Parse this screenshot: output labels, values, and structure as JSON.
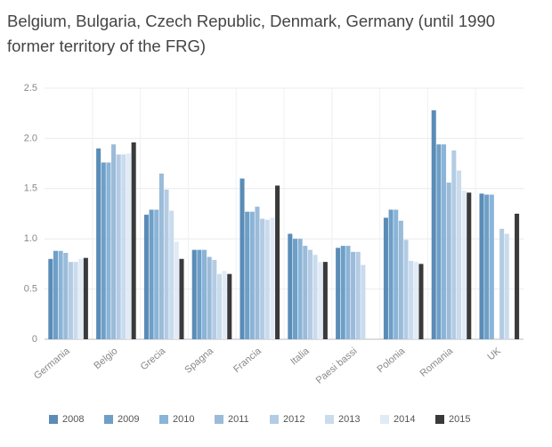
{
  "chart_data": {
    "type": "bar",
    "title": "Belgium, Bulgaria, Czech Republic, Denmark, Germany (until 1990 former territory of the FRG)",
    "categories": [
      "Germania",
      "Belgio",
      "Grecia",
      "Spagna",
      "Francia",
      "Italia",
      "Paesi bassi",
      "Polonia",
      "Romania",
      "UK"
    ],
    "series": [
      {
        "name": "2008",
        "color": "#5a8cb7",
        "values": [
          0.8,
          1.9,
          1.24,
          0.89,
          1.6,
          1.05,
          0.91,
          1.21,
          2.28,
          1.45
        ]
      },
      {
        "name": "2009",
        "color": "#6e9fc7",
        "values": [
          0.88,
          1.76,
          1.29,
          0.89,
          1.27,
          1.0,
          0.93,
          1.29,
          1.94,
          1.44
        ]
      },
      {
        "name": "2010",
        "color": "#8ab4d8",
        "values": [
          0.88,
          1.76,
          1.29,
          0.89,
          1.27,
          1.0,
          0.93,
          1.29,
          1.94,
          1.44
        ]
      },
      {
        "name": "2011",
        "color": "#9bbbd8",
        "values": [
          0.86,
          1.94,
          1.65,
          0.82,
          1.32,
          0.93,
          0.87,
          1.18,
          1.56,
          null
        ]
      },
      {
        "name": "2012",
        "color": "#b3cce4",
        "values": [
          0.77,
          1.84,
          1.49,
          0.79,
          1.2,
          0.89,
          0.87,
          0.99,
          1.88,
          1.1
        ]
      },
      {
        "name": "2013",
        "color": "#c9dbed",
        "values": [
          0.77,
          1.84,
          1.28,
          0.65,
          1.19,
          0.84,
          0.74,
          0.78,
          1.68,
          1.05
        ]
      },
      {
        "name": "2014",
        "color": "#e1ebf6",
        "values": [
          0.8,
          1.85,
          0.97,
          0.68,
          1.21,
          0.77,
          null,
          0.77,
          1.48,
          null
        ]
      },
      {
        "name": "2015",
        "color": "#3a3a3a",
        "values": [
          0.81,
          1.96,
          0.8,
          0.65,
          1.53,
          0.77,
          null,
          0.75,
          1.46,
          1.25
        ]
      }
    ],
    "ylim": [
      0,
      2.5
    ],
    "yticks": [
      0,
      0.5,
      {
        "value": 1,
        "label": "1.0"
      },
      1.5,
      {
        "value": 2,
        "label": "2.0"
      },
      2.5
    ],
    "grid": true
  }
}
